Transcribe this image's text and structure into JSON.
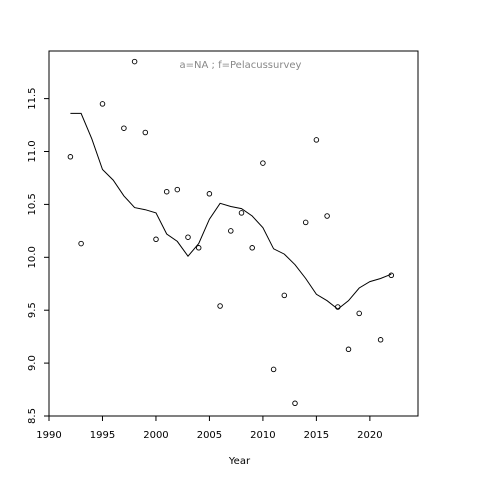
{
  "chart_data": {
    "type": "scatter",
    "title": "",
    "annotation": "a=NA  ;  f=Pelacussurvey",
    "xlabel": "Year",
    "ylabel": "",
    "xlim": [
      1990,
      2024.5
    ],
    "ylim": [
      8.5,
      11.95
    ],
    "xticks": [
      1990,
      1995,
      2000,
      2005,
      2010,
      2015,
      2020
    ],
    "yticks": [
      8.5,
      9.0,
      9.5,
      10.0,
      10.5,
      11.0,
      11.5
    ],
    "grid": false,
    "points": [
      {
        "x": 1992,
        "y": 10.95
      },
      {
        "x": 1993,
        "y": 10.13
      },
      {
        "x": 1995,
        "y": 11.45
      },
      {
        "x": 1997,
        "y": 11.22
      },
      {
        "x": 1998,
        "y": 11.85
      },
      {
        "x": 1999,
        "y": 11.18
      },
      {
        "x": 2000,
        "y": 10.17
      },
      {
        "x": 2001,
        "y": 10.62
      },
      {
        "x": 2002,
        "y": 10.64
      },
      {
        "x": 2003,
        "y": 10.19
      },
      {
        "x": 2004,
        "y": 10.09
      },
      {
        "x": 2005,
        "y": 10.6
      },
      {
        "x": 2006,
        "y": 9.54
      },
      {
        "x": 2007,
        "y": 10.25
      },
      {
        "x": 2008,
        "y": 10.42
      },
      {
        "x": 2009,
        "y": 10.09
      },
      {
        "x": 2010,
        "y": 10.89
      },
      {
        "x": 2011,
        "y": 8.94
      },
      {
        "x": 2012,
        "y": 9.64
      },
      {
        "x": 2013,
        "y": 8.62
      },
      {
        "x": 2014,
        "y": 10.33
      },
      {
        "x": 2015,
        "y": 11.11
      },
      {
        "x": 2016,
        "y": 10.39
      },
      {
        "x": 2017,
        "y": 9.53
      },
      {
        "x": 2018,
        "y": 9.13
      },
      {
        "x": 2019,
        "y": 9.47
      },
      {
        "x": 2021,
        "y": 9.22
      },
      {
        "x": 2022,
        "y": 9.83
      }
    ],
    "line": [
      {
        "x": 1992,
        "y": 11.36
      },
      {
        "x": 1993,
        "y": 11.36
      },
      {
        "x": 1994,
        "y": 11.12
      },
      {
        "x": 1995,
        "y": 10.83
      },
      {
        "x": 1996,
        "y": 10.73
      },
      {
        "x": 1997,
        "y": 10.58
      },
      {
        "x": 1998,
        "y": 10.47
      },
      {
        "x": 1999,
        "y": 10.45
      },
      {
        "x": 2000,
        "y": 10.42
      },
      {
        "x": 2001,
        "y": 10.22
      },
      {
        "x": 2002,
        "y": 10.15
      },
      {
        "x": 2003,
        "y": 10.01
      },
      {
        "x": 2004,
        "y": 10.13
      },
      {
        "x": 2005,
        "y": 10.36
      },
      {
        "x": 2006,
        "y": 10.51
      },
      {
        "x": 2007,
        "y": 10.48
      },
      {
        "x": 2008,
        "y": 10.46
      },
      {
        "x": 2009,
        "y": 10.39
      },
      {
        "x": 2010,
        "y": 10.28
      },
      {
        "x": 2011,
        "y": 10.08
      },
      {
        "x": 2012,
        "y": 10.03
      },
      {
        "x": 2013,
        "y": 9.93
      },
      {
        "x": 2014,
        "y": 9.8
      },
      {
        "x": 2015,
        "y": 9.65
      },
      {
        "x": 2016,
        "y": 9.59
      },
      {
        "x": 2017,
        "y": 9.51
      },
      {
        "x": 2018,
        "y": 9.59
      },
      {
        "x": 2019,
        "y": 9.71
      },
      {
        "x": 2020,
        "y": 9.77
      },
      {
        "x": 2021,
        "y": 9.8
      },
      {
        "x": 2022,
        "y": 9.84
      }
    ]
  }
}
